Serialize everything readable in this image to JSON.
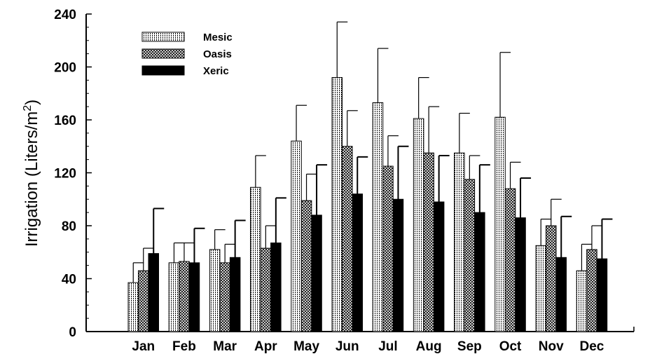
{
  "chart_data": {
    "type": "bar",
    "ylabel": "Irrigation (Liters/m",
    "ylabel_sup": "2",
    "ylabel_close": ")",
    "xlabel": "",
    "ylim": [
      0,
      240
    ],
    "yticks": [
      0,
      40,
      80,
      120,
      160,
      200,
      240
    ],
    "categories": [
      "Jan",
      "Feb",
      "Mar",
      "Apr",
      "May",
      "Jun",
      "Jul",
      "Aug",
      "Sep",
      "Oct",
      "Nov",
      "Dec"
    ],
    "legend_position": "top-left",
    "grid": false,
    "series": [
      {
        "name": "Mesic",
        "pattern": "dotted-vertical-lines",
        "values": [
          37,
          52,
          62,
          109,
          144,
          192,
          173,
          161,
          135,
          162,
          65,
          46
        ],
        "error_upper": [
          52,
          67,
          77,
          133,
          171,
          234,
          214,
          192,
          165,
          211,
          85,
          66
        ]
      },
      {
        "name": "Oasis",
        "pattern": "crosshatch",
        "values": [
          46,
          53,
          52,
          63,
          99,
          140,
          125,
          135,
          115,
          108,
          80,
          62
        ],
        "error_upper": [
          63,
          67,
          66,
          80,
          119,
          167,
          148,
          170,
          133,
          128,
          100,
          80
        ]
      },
      {
        "name": "Xeric",
        "pattern": "solid",
        "values": [
          59,
          52,
          56,
          67,
          88,
          104,
          100,
          98,
          90,
          86,
          56,
          55
        ],
        "error_upper": [
          93,
          78,
          84,
          101,
          126,
          132,
          140,
          133,
          126,
          116,
          87,
          85
        ]
      }
    ],
    "colors": {
      "bar_fill_solid": "#000000",
      "axis": "#000000",
      "background": "#ffffff"
    }
  }
}
